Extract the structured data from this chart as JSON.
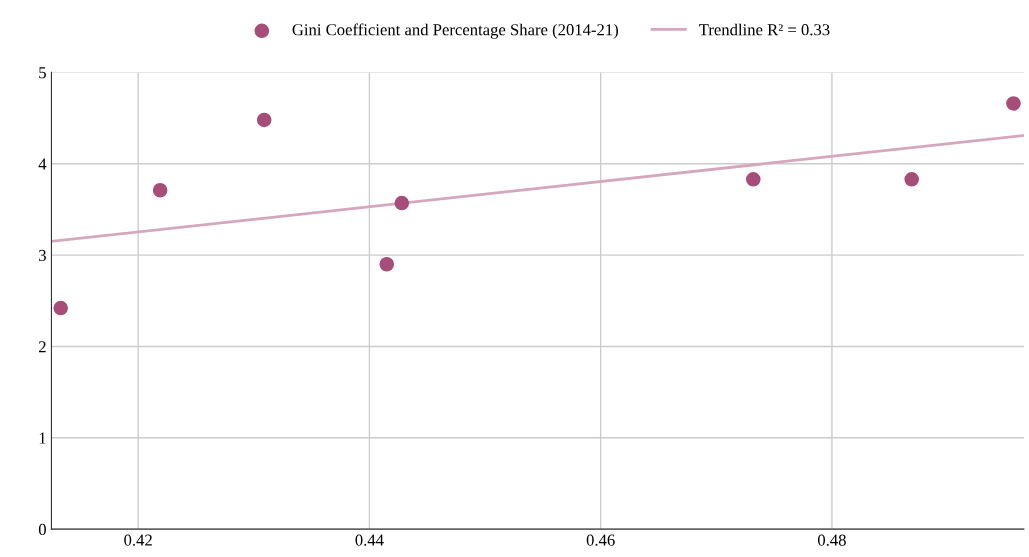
{
  "chart_data": {
    "type": "scatter",
    "xlim": [
      0.4125,
      0.4966
    ],
    "xticks": [
      0.42,
      0.44,
      0.46,
      0.48
    ],
    "ylim": [
      0,
      5
    ],
    "yticks": [
      0,
      1,
      2,
      3,
      4,
      5
    ],
    "grid": true,
    "legend": "top",
    "series": [
      {
        "name": "Gini Coefficient and Percentage Share (2014-21)",
        "color": "#a64d79",
        "marker": "circle",
        "x": [
          0.4133,
          0.4219,
          0.4309,
          0.4415,
          0.4428,
          0.4732,
          0.4869,
          0.4957
        ],
        "values": [
          2.42,
          3.71,
          4.48,
          2.9,
          3.57,
          3.83,
          3.83,
          4.66
        ]
      },
      {
        "name": "Trendline R² = 0.33",
        "type": "line",
        "marker": "none",
        "color": "#d5a6bd",
        "x": [
          0.4125,
          0.4966
        ],
        "values": [
          3.15,
          4.31
        ]
      }
    ]
  }
}
